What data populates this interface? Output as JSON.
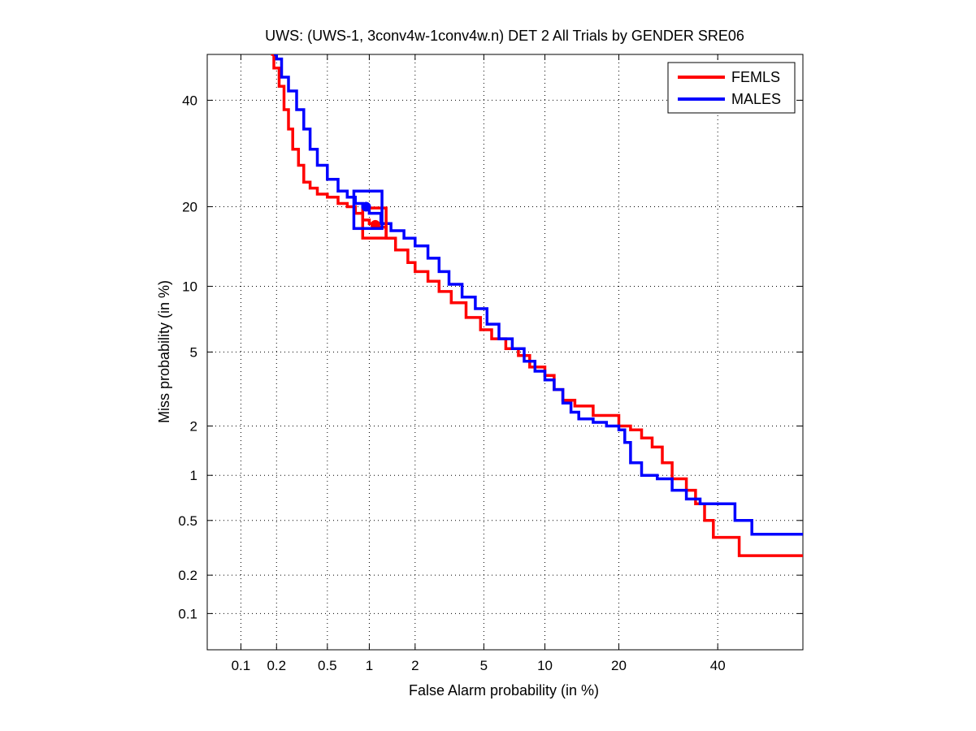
{
  "chart_data": {
    "type": "line",
    "title": "UWS: (UWS-1, 3conv4w-1conv4w.n) DET 2 All Trials by GENDER SRE06",
    "xlabel": "False Alarm probability (in %)",
    "ylabel": "Miss probability (in %)",
    "x_scale": "normal-deviate",
    "y_scale": "normal-deviate",
    "xlim": [
      0.05,
      60
    ],
    "ylim": [
      0.05,
      50
    ],
    "x_ticks": [
      0.1,
      0.2,
      0.5,
      1,
      2,
      5,
      10,
      20,
      40
    ],
    "x_tick_labels": [
      "0.1",
      "0.2",
      "0.5",
      "1",
      "2",
      "5",
      "10",
      "20",
      "40"
    ],
    "y_ticks": [
      0.1,
      0.2,
      0.5,
      1,
      2,
      5,
      10,
      20,
      40
    ],
    "y_tick_labels": [
      "0.1",
      "0.2",
      "0.5",
      "1",
      "2",
      "5",
      "10",
      "20",
      "40"
    ],
    "grid": true,
    "legend_position": "top-right",
    "series": [
      {
        "name": "FEMLS",
        "color": "#ff0000",
        "x": [
          0.18,
          0.19,
          0.21,
          0.23,
          0.25,
          0.27,
          0.3,
          0.33,
          0.37,
          0.42,
          0.5,
          0.6,
          0.7,
          0.8,
          0.9,
          1.0,
          1.1,
          1.3,
          1.5,
          1.8,
          2.0,
          2.4,
          2.8,
          3.3,
          4.0,
          4.8,
          5.5,
          6.5,
          7.5,
          8.5,
          10,
          11,
          12,
          13.5,
          16,
          20,
          22,
          24,
          26,
          28,
          30,
          33,
          35,
          37,
          39,
          45,
          60
        ],
        "y": [
          50,
          47,
          43,
          38,
          34,
          30,
          27,
          24,
          23,
          22,
          21.5,
          20.5,
          20,
          19,
          18,
          17.5,
          17,
          15.5,
          14,
          12.5,
          11.5,
          10.5,
          9.5,
          8.5,
          7.3,
          6.4,
          5.8,
          5.2,
          4.8,
          4.2,
          3.8,
          3.2,
          2.8,
          2.6,
          2.3,
          2.0,
          1.9,
          1.7,
          1.5,
          1.2,
          0.95,
          0.8,
          0.65,
          0.5,
          0.38,
          0.28,
          0.28
        ]
      },
      {
        "name": "MALES",
        "color": "#0000ff",
        "x": [
          0.19,
          0.2,
          0.22,
          0.25,
          0.29,
          0.33,
          0.37,
          0.42,
          0.5,
          0.6,
          0.7,
          0.8,
          0.9,
          1.0,
          1.2,
          1.4,
          1.7,
          2.0,
          2.4,
          2.8,
          3.2,
          3.8,
          4.5,
          5.2,
          6.0,
          7.0,
          8.0,
          9.0,
          10,
          11,
          12,
          13,
          14,
          16,
          18,
          20,
          21,
          22,
          24,
          27,
          30,
          33,
          36,
          40,
          44,
          48,
          60
        ],
        "y": [
          50,
          49,
          45,
          42,
          38,
          34,
          30,
          27,
          24.5,
          22.5,
          21.5,
          20.5,
          20,
          19,
          17.5,
          16.5,
          15.5,
          14.5,
          13,
          11.5,
          10.2,
          9.0,
          8.0,
          6.8,
          5.8,
          5.2,
          4.5,
          4.0,
          3.6,
          3.2,
          2.7,
          2.4,
          2.2,
          2.1,
          2.0,
          1.9,
          1.6,
          1.2,
          1.0,
          0.95,
          0.8,
          0.7,
          0.65,
          0.65,
          0.5,
          0.4,
          0.4
        ]
      }
    ],
    "markers": [
      {
        "series": "FEMLS",
        "kind": "square",
        "x": 1.1,
        "y": 17.5,
        "x_half_width": 0.2,
        "y_range": [
          15.5,
          19.8
        ]
      },
      {
        "series": "FEMLS",
        "kind": "dot",
        "x": 1.1,
        "y": 17.3
      },
      {
        "series": "MALES",
        "kind": "square",
        "x": 1.0,
        "y": 19.5,
        "x_half_width": 0.22,
        "y_range": [
          16.8,
          22.5
        ]
      },
      {
        "series": "MALES",
        "kind": "dot",
        "x": 0.95,
        "y": 20
      }
    ]
  }
}
